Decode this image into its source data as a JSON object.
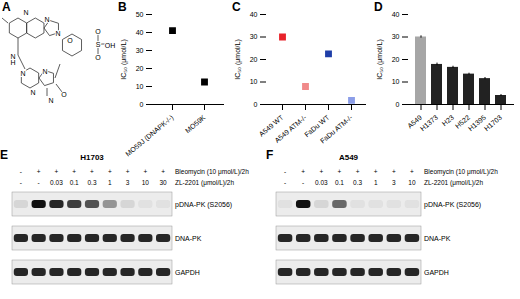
{
  "chart_data": [
    {
      "panel": "B",
      "type": "scatter",
      "categories": [
        "MO59J (DNAPK-/-)",
        "MO59K"
      ],
      "values": [
        41,
        12.5
      ],
      "color": "#000000",
      "marker": "square",
      "y_label": "IC₅₀ (μmol/L)",
      "ylim": [
        0,
        50
      ],
      "yticks": [
        0,
        10,
        20,
        30,
        40,
        50
      ],
      "grid": false
    },
    {
      "panel": "C",
      "type": "scatter",
      "categories": [
        "A549 WT",
        "A549 ATM-/-",
        "FaDu WT",
        "FaDu ATM-/-"
      ],
      "values": [
        30,
        8,
        22.5,
        1.8
      ],
      "colors": [
        "#e8232a",
        "#f08a8a",
        "#1f3ea8",
        "#8c9ee8"
      ],
      "marker": "square",
      "y_label": "IC₅₀ (μmol/L)",
      "ylim": [
        0,
        40
      ],
      "yticks": [
        0,
        10,
        20,
        30,
        40
      ],
      "grid": false
    },
    {
      "panel": "D",
      "type": "bar",
      "categories": [
        "A549",
        "H1373",
        "H23",
        "H522",
        "H1395",
        "H1703"
      ],
      "values": [
        30,
        17.8,
        16.5,
        13.5,
        11.5,
        4
      ],
      "errors": [
        0.5,
        0.6,
        0.5,
        0.4,
        0.5,
        0.4
      ],
      "colors": [
        "#a6a6a6",
        "#222222",
        "#222222",
        "#222222",
        "#222222",
        "#222222"
      ],
      "y_label": "IC₅₀ (μmol/L)",
      "ylim": [
        0,
        40
      ],
      "yticks": [
        0,
        10,
        20,
        30,
        40
      ],
      "grid": false
    }
  ],
  "structure": {
    "panel": "A",
    "atoms": [
      "N",
      "N",
      "N",
      "N",
      "H",
      "O",
      "N",
      "N",
      "N",
      "O",
      "N",
      "S",
      "O",
      "O",
      "OH"
    ]
  },
  "blots": [
    {
      "panel": "E",
      "title": "H1703",
      "treatments": [
        {
          "label": "Bleomycin (10 μmol/L)/2h",
          "lanes": [
            "-",
            "+",
            "+",
            "+",
            "+",
            "+",
            "+",
            "+",
            "+"
          ]
        },
        {
          "label": "ZL-2201 (μmol/L)/2h",
          "lanes": [
            "-",
            "-",
            "0.03",
            "0.1",
            "0.3",
            "1",
            "3",
            "10",
            "30"
          ]
        }
      ],
      "rows": [
        {
          "label": "pDNA-PK (S2056)",
          "intensity": [
            0.1,
            1,
            0.9,
            0.8,
            0.7,
            0.4,
            0.1,
            0.05,
            0.05
          ]
        },
        {
          "label": "DNA-PK",
          "intensity": [
            0.9,
            0.9,
            0.9,
            0.9,
            0.9,
            0.9,
            0.9,
            0.9,
            0.9
          ]
        },
        {
          "label": "GAPDH",
          "intensity": [
            0.9,
            0.9,
            0.9,
            0.9,
            0.9,
            0.9,
            0.9,
            0.9,
            0.9
          ]
        }
      ]
    },
    {
      "panel": "F",
      "title": "A549",
      "treatments": [
        {
          "label": "Bleomycin (10 μmol/L)/2h",
          "lanes": [
            "-",
            "+",
            "+",
            "+",
            "+",
            "+",
            "+",
            "+"
          ]
        },
        {
          "label": "ZL-2201 (μmol/L)/2h",
          "lanes": [
            "-",
            "-",
            "0.03",
            "0.1",
            "0.3",
            "1",
            "3",
            "10"
          ]
        }
      ],
      "rows": [
        {
          "label": "pDNA-PK (S2056)",
          "intensity": [
            0.05,
            1,
            0.1,
            0.6,
            0.05,
            0.05,
            0.05,
            0.05
          ]
        },
        {
          "label": "DNA-PK",
          "intensity": [
            0.9,
            0.9,
            0.9,
            0.9,
            0.9,
            0.9,
            0.9,
            0.9
          ]
        },
        {
          "label": "GAPDH",
          "intensity": [
            0.9,
            0.9,
            0.9,
            0.9,
            0.9,
            0.9,
            0.9,
            0.9
          ]
        }
      ]
    }
  ]
}
